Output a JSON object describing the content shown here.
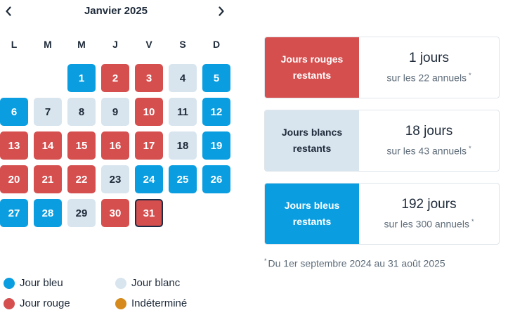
{
  "calendar": {
    "title": "Janvier 2025",
    "weekdays": [
      "L",
      "M",
      "M",
      "J",
      "V",
      "S",
      "D"
    ],
    "days": [
      {
        "label": "1",
        "type": "bleu"
      },
      {
        "label": "2",
        "type": "rouge"
      },
      {
        "label": "3",
        "type": "rouge"
      },
      {
        "label": "4",
        "type": "blanc"
      },
      {
        "label": "5",
        "type": "bleu"
      },
      {
        "label": "6",
        "type": "bleu"
      },
      {
        "label": "7",
        "type": "blanc"
      },
      {
        "label": "8",
        "type": "blanc"
      },
      {
        "label": "9",
        "type": "blanc"
      },
      {
        "label": "10",
        "type": "rouge"
      },
      {
        "label": "11",
        "type": "blanc"
      },
      {
        "label": "12",
        "type": "bleu"
      },
      {
        "label": "13",
        "type": "rouge"
      },
      {
        "label": "14",
        "type": "rouge"
      },
      {
        "label": "15",
        "type": "rouge"
      },
      {
        "label": "16",
        "type": "rouge"
      },
      {
        "label": "17",
        "type": "rouge"
      },
      {
        "label": "18",
        "type": "blanc"
      },
      {
        "label": "19",
        "type": "bleu"
      },
      {
        "label": "20",
        "type": "rouge"
      },
      {
        "label": "21",
        "type": "rouge"
      },
      {
        "label": "22",
        "type": "rouge"
      },
      {
        "label": "23",
        "type": "blanc"
      },
      {
        "label": "24",
        "type": "bleu"
      },
      {
        "label": "25",
        "type": "bleu"
      },
      {
        "label": "26",
        "type": "bleu"
      },
      {
        "label": "27",
        "type": "bleu"
      },
      {
        "label": "28",
        "type": "bleu"
      },
      {
        "label": "29",
        "type": "blanc"
      },
      {
        "label": "30",
        "type": "rouge"
      },
      {
        "label": "31",
        "type": "rouge",
        "selected": true
      }
    ]
  },
  "cards": {
    "rouge": {
      "label_line1": "Jours rouges",
      "label_line2": "restants",
      "count": "1 jours",
      "sub": "sur les 22 annuels",
      "asterisk": "*"
    },
    "blanc": {
      "label_line1": "Jours blancs",
      "label_line2": "restants",
      "count": "18 jours",
      "sub": "sur les 43 annuels",
      "asterisk": "*"
    },
    "bleu": {
      "label_line1": "Jours bleus",
      "label_line2": "restants",
      "count": "192 jours",
      "sub": "sur les 300 annuels",
      "asterisk": "*"
    }
  },
  "footnote": {
    "asterisk": "*",
    "text": "Du 1er septembre 2024 au 31 août 2025"
  },
  "legend": {
    "bleu": {
      "label": "Jour bleu",
      "color": "#0a9ee1"
    },
    "blanc": {
      "label": "Jour blanc",
      "color": "#d8e5ee"
    },
    "rouge": {
      "label": "Jour rouge",
      "color": "#d54f4f"
    },
    "indetermine": {
      "label": "Indéterminé",
      "color": "#d68a1c"
    }
  },
  "icons": {
    "prev": "chevron-left-icon",
    "next": "chevron-right-icon"
  }
}
